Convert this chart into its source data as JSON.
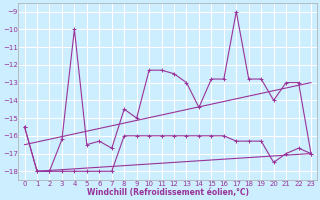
{
  "xlabel": "Windchill (Refroidissement éolien,°C)",
  "bg_color": "#cceeff",
  "grid_color": "#ffffff",
  "line_color": "#993399",
  "xlim": [
    -0.5,
    23.5
  ],
  "ylim": [
    -18.5,
    -8.5
  ],
  "yticks": [
    -18,
    -17,
    -16,
    -15,
    -14,
    -13,
    -12,
    -11,
    -10,
    -9
  ],
  "xticks": [
    0,
    1,
    2,
    3,
    4,
    5,
    6,
    7,
    8,
    9,
    10,
    11,
    12,
    13,
    14,
    15,
    16,
    17,
    18,
    19,
    20,
    21,
    22,
    23
  ],
  "series_spiky_x": [
    0,
    1,
    2,
    3,
    4,
    5,
    6,
    7,
    8,
    9,
    10,
    11,
    12,
    13,
    14,
    15,
    16,
    17,
    18,
    19,
    20,
    21,
    22,
    23
  ],
  "series_spiky_y": [
    -15.5,
    -18.0,
    -18.0,
    -16.2,
    -10.0,
    -16.5,
    -16.3,
    -16.7,
    -14.5,
    -15.0,
    -12.3,
    -12.3,
    -12.5,
    -13.0,
    -14.4,
    -12.8,
    -12.8,
    -9.0,
    -12.8,
    -12.8,
    -14.0,
    -13.0,
    -13.0,
    -17.0
  ],
  "series_flat_x": [
    0,
    1,
    2,
    3,
    4,
    5,
    6,
    7,
    8,
    9,
    10,
    11,
    12,
    13,
    14,
    15,
    16,
    17,
    18,
    19,
    20,
    21,
    22,
    23
  ],
  "series_flat_y": [
    -15.5,
    -18.0,
    -18.0,
    -18.0,
    -18.0,
    -18.0,
    -18.0,
    -18.0,
    -16.0,
    -16.0,
    -16.0,
    -16.0,
    -16.0,
    -16.0,
    -16.0,
    -16.0,
    -16.0,
    -16.3,
    -16.3,
    -16.3,
    -17.5,
    -17.0,
    -16.7,
    -17.0
  ],
  "series_trend1_x": [
    0,
    23
  ],
  "series_trend1_y": [
    -16.5,
    -13.0
  ],
  "series_trend2_x": [
    1,
    23
  ],
  "series_trend2_y": [
    -18.0,
    -17.0
  ]
}
